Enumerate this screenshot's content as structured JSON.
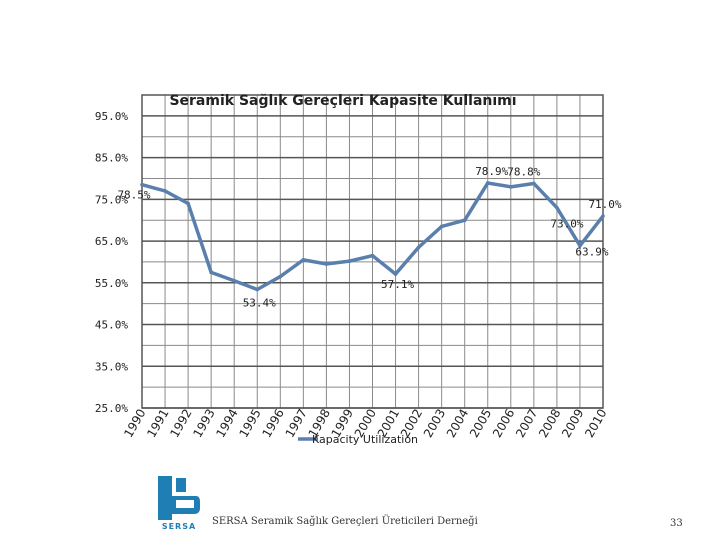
{
  "chart_data": {
    "type": "line",
    "title": "Seramik Sağlık Gereçleri Kapasite Kullanımı",
    "legend": "Kapacity Utilization",
    "legend_placement": "bottom",
    "categories": [
      "1990",
      "1991",
      "1992",
      "1993",
      "1994",
      "1995",
      "1996",
      "1997",
      "1998",
      "1999",
      "2000",
      "2001",
      "2002",
      "2003",
      "2004",
      "2005",
      "2006",
      "2007",
      "2008",
      "2009",
      "2010"
    ],
    "series": [
      {
        "name": "Kapacity Utilization",
        "values": [
          78.5,
          77.0,
          74.0,
          57.5,
          55.5,
          53.4,
          56.5,
          60.5,
          59.5,
          60.2,
          61.5,
          57.1,
          63.5,
          68.5,
          70.0,
          78.9,
          78.0,
          78.8,
          73.0,
          63.9,
          71.0
        ]
      }
    ],
    "y_ticks": [
      "25.0%",
      "35.0%",
      "45.0%",
      "55.0%",
      "65.0%",
      "75.0%",
      "85.0%",
      "95.0%"
    ],
    "ylim": [
      25,
      100
    ],
    "grid": true,
    "color": "#5b7fad",
    "data_labels": [
      {
        "index": 0,
        "text": "78.5%"
      },
      {
        "index": 5,
        "text": "53.4%"
      },
      {
        "index": 11,
        "text": "57.1%"
      },
      {
        "index": 15,
        "text": "78.9%"
      },
      {
        "index": 17,
        "text": "78.8%"
      },
      {
        "index": 18,
        "text": "73.0%"
      },
      {
        "index": 19,
        "text": "63.9%"
      },
      {
        "index": 20,
        "text": "71.0%"
      }
    ]
  },
  "footer": {
    "organization": "SERSA Seramik Sağlık Gereçleri Üreticileri Derneği",
    "page_number": "33",
    "logo_text": "SERSA"
  }
}
